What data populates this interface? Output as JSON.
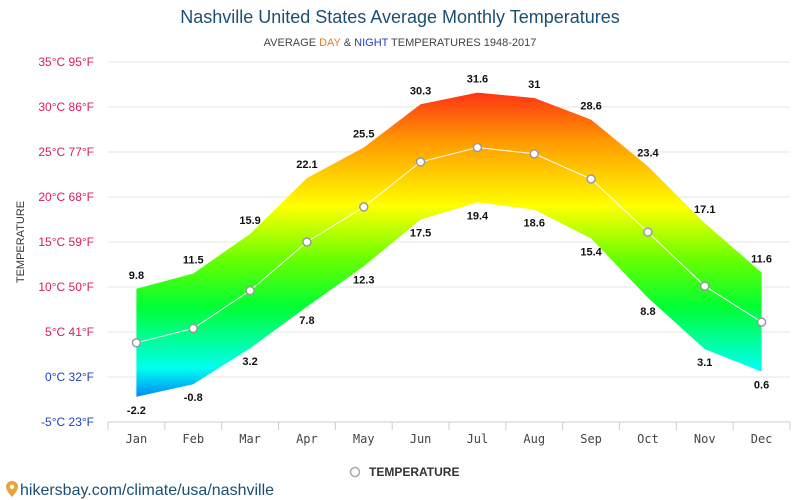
{
  "chart_data": {
    "type": "area",
    "title": "Nashville United States Average Monthly Temperatures",
    "subtitle": {
      "prefix": "AVERAGE ",
      "day_word": "DAY",
      "mid": " & ",
      "night_word": "NIGHT",
      "suffix": " TEMPERATURES 1948-2017"
    },
    "ylabel": "TEMPERATURE",
    "categories": [
      "Jan",
      "Feb",
      "Mar",
      "Apr",
      "May",
      "Jun",
      "Jul",
      "Aug",
      "Sep",
      "Oct",
      "Nov",
      "Dec"
    ],
    "series": [
      {
        "name": "",
        "role": "day",
        "values": [
          9.8,
          11.5,
          15.9,
          22.1,
          25.5,
          30.3,
          31.6,
          31,
          28.6,
          23.4,
          17.1,
          11.6
        ]
      },
      {
        "name": "",
        "role": "night",
        "values": [
          -2.2,
          -0.8,
          3.2,
          7.8,
          12.3,
          17.5,
          19.4,
          18.6,
          15.4,
          8.8,
          3.1,
          0.6
        ]
      },
      {
        "name": "TEMPERATURE",
        "role": "average",
        "values": [
          3.8,
          5.4,
          9.6,
          15.0,
          18.9,
          23.9,
          25.5,
          24.8,
          22.0,
          16.1,
          10.1,
          6.1
        ]
      }
    ],
    "ylim": [
      -5,
      35
    ],
    "yticks": [
      {
        "value": 35,
        "label": "35°C 95°F"
      },
      {
        "value": 30,
        "label": "30°C 86°F"
      },
      {
        "value": 25,
        "label": "25°C 77°F"
      },
      {
        "value": 20,
        "label": "20°C 68°F"
      },
      {
        "value": 15,
        "label": "15°C 59°F"
      },
      {
        "value": 10,
        "label": "10°C 50°F"
      },
      {
        "value": 5,
        "label": "5°C 41°F"
      },
      {
        "value": 0,
        "label": "0°C 32°F"
      },
      {
        "value": -5,
        "label": "-5°C 23°F"
      }
    ],
    "grid": true,
    "legend": "bottom-center",
    "colors": {
      "title": "#1b4f72",
      "day_word": "#e67e22",
      "night_word": "#1f3fbf",
      "ytick_warm": "#d81b60",
      "ytick_cold": "#1f3fbf",
      "grid": "#e6e6e6",
      "average_line": "#ffffff",
      "marker_stroke": "#999999",
      "gradient": [
        "#ff1a1a",
        "#ff9900",
        "#ffff00",
        "#66ff00",
        "#00ff33",
        "#00ffee",
        "#0022ff"
      ]
    }
  },
  "source": {
    "icon": "map-pin-icon",
    "text": "hikersbay.com/climate/usa/nashville"
  }
}
